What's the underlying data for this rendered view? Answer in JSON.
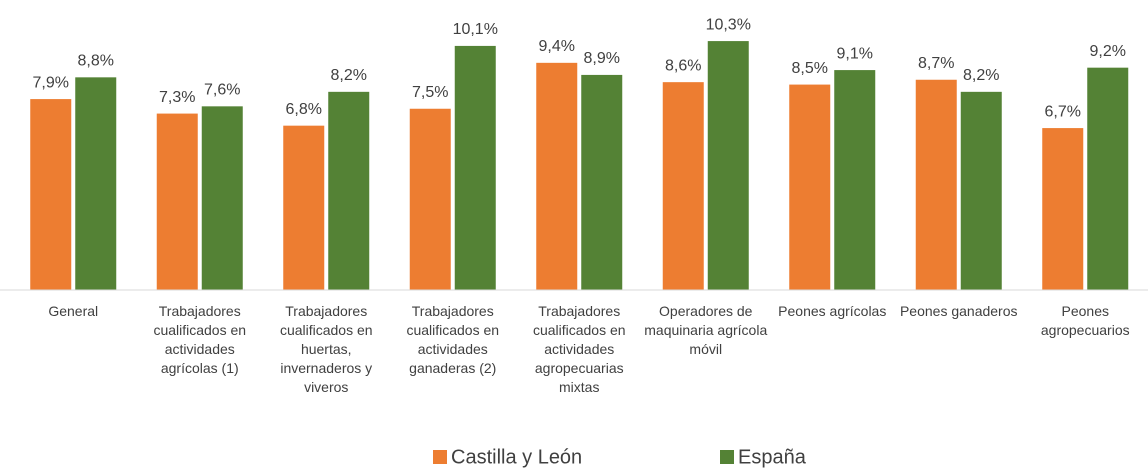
{
  "chart_data": {
    "type": "bar",
    "categories": [
      "General",
      "Trabajadores cualificados en actividades agrícolas (1)",
      "Trabajadores cualificados en huertas, invernaderos y viveros",
      "Trabajadores cualificados en actividades ganaderas (2)",
      "Trabajadores cualificados en actividades agropecuarias mixtas",
      "Operadores de maquinaria agrícola móvil",
      "Peones agrícolas",
      "Peones ganaderos",
      "Peones agropecuarios"
    ],
    "series": [
      {
        "name": "Castilla y León",
        "color": "#ed7d31",
        "values": [
          7.9,
          7.3,
          6.8,
          7.5,
          9.4,
          8.6,
          8.5,
          8.7,
          6.7
        ],
        "value_labels": [
          "7,9%",
          "7,3%",
          "6,8%",
          "7,5%",
          "9,4%",
          "8,6%",
          "8,5%",
          "8,7%",
          "6,7%"
        ]
      },
      {
        "name": "España",
        "color": "#548235",
        "values": [
          8.8,
          7.6,
          8.2,
          10.1,
          8.9,
          10.3,
          9.1,
          8.2,
          9.2
        ],
        "value_labels": [
          "8,8%",
          "7,6%",
          "8,2%",
          "10,1%",
          "8,9%",
          "10,3%",
          "9,1%",
          "8,2%",
          "9,2%"
        ]
      }
    ],
    "ylim": [
      0,
      12
    ],
    "legend": "bottom"
  }
}
